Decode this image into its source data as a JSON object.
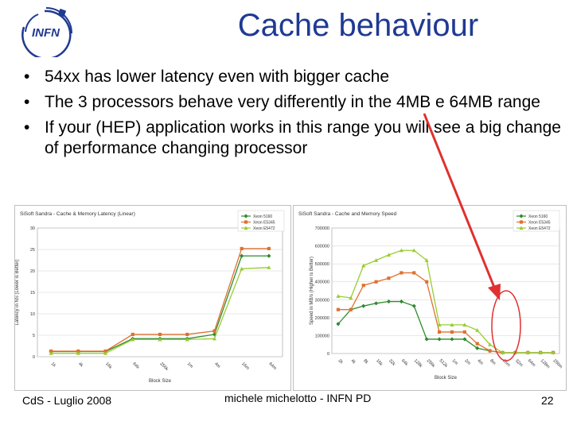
{
  "logo": {
    "text": "INFN"
  },
  "slide": {
    "title": "Cache behaviour",
    "bullets": [
      "54xx has lower latency even with bigger cache",
      "The 3 processors behave very differently in the 4MB e 64MB range",
      "If your (HEP) application works in this range you will see a big change of performance changing processor"
    ]
  },
  "footer": {
    "left": "CdS - Luglio 2008",
    "center": "michele michelotto - INFN PD",
    "page": "22"
  },
  "colors": {
    "title": "#1f3a93",
    "annotation": "#e03030",
    "xeon5160": "#2e8b2e",
    "xeon5345": "#e07030",
    "xeon5472": "#9acd32"
  },
  "chart_data": [
    {
      "type": "line",
      "title": "SiSoft Sandra - Cache & Memory Latency (Linear)",
      "ylabel": "Latency in NS (Lower is Better)",
      "xlabel": "Block Size",
      "ylim": [
        0,
        30
      ],
      "yticks": [
        0,
        5,
        10,
        15,
        20,
        25,
        30
      ],
      "categories": [
        "1k",
        "4k",
        "16k",
        "64k",
        "256k",
        "1m",
        "4m",
        "16m",
        "64m"
      ],
      "series": [
        {
          "name": "Xeon 5160",
          "color": "#2e8b2e",
          "marker": "diamond",
          "values": [
            1.2,
            1.2,
            1.2,
            4.2,
            4.2,
            4.2,
            5.2,
            23.5,
            23.5
          ]
        },
        {
          "name": "Xeon E5345",
          "color": "#e07030",
          "marker": "square",
          "values": [
            1.3,
            1.3,
            1.3,
            5.2,
            5.2,
            5.2,
            6.0,
            25.2,
            25.2
          ]
        },
        {
          "name": "Xeon E5472",
          "color": "#9acd32",
          "marker": "triangle",
          "values": [
            0.8,
            0.8,
            0.8,
            4.0,
            4.0,
            4.0,
            4.2,
            20.5,
            20.8
          ]
        }
      ],
      "legend": "top-right",
      "grid": true
    },
    {
      "type": "line",
      "title": "SiSoft Sandra - Cache and Memory Speed",
      "ylabel": "Speed in MB/s (Higher is Better)",
      "xlabel": "Block Size",
      "ylim": [
        0,
        700000
      ],
      "yticks": [
        0,
        100000,
        200000,
        300000,
        400000,
        500000,
        600000,
        700000
      ],
      "categories": [
        "2k",
        "4k",
        "8k",
        "16k",
        "32k",
        "64k",
        "128k",
        "256k",
        "512k",
        "1m",
        "2m",
        "4m",
        "8m",
        "16m",
        "32m",
        "64m",
        "128m",
        "256m"
      ],
      "series": [
        {
          "name": "Xeon 5160",
          "color": "#2e8b2e",
          "marker": "diamond",
          "values": [
            165000,
            245000,
            265000,
            280000,
            290000,
            290000,
            265000,
            80000,
            80000,
            80000,
            80000,
            30000,
            15000,
            5000,
            5000,
            5000,
            5000,
            5000
          ]
        },
        {
          "name": "Xeon E5345",
          "color": "#e07030",
          "marker": "square",
          "values": [
            245000,
            245000,
            380000,
            400000,
            420000,
            450000,
            450000,
            400000,
            120000,
            120000,
            120000,
            55000,
            15000,
            5000,
            5000,
            5000,
            5000,
            5000
          ]
        },
        {
          "name": "Xeon E5472",
          "color": "#9acd32",
          "marker": "triangle",
          "values": [
            320000,
            310000,
            490000,
            520000,
            550000,
            575000,
            575000,
            520000,
            160000,
            160000,
            160000,
            130000,
            50000,
            5000,
            5000,
            5000,
            5000,
            5000
          ]
        }
      ],
      "legend": "top-right",
      "grid": true
    }
  ]
}
